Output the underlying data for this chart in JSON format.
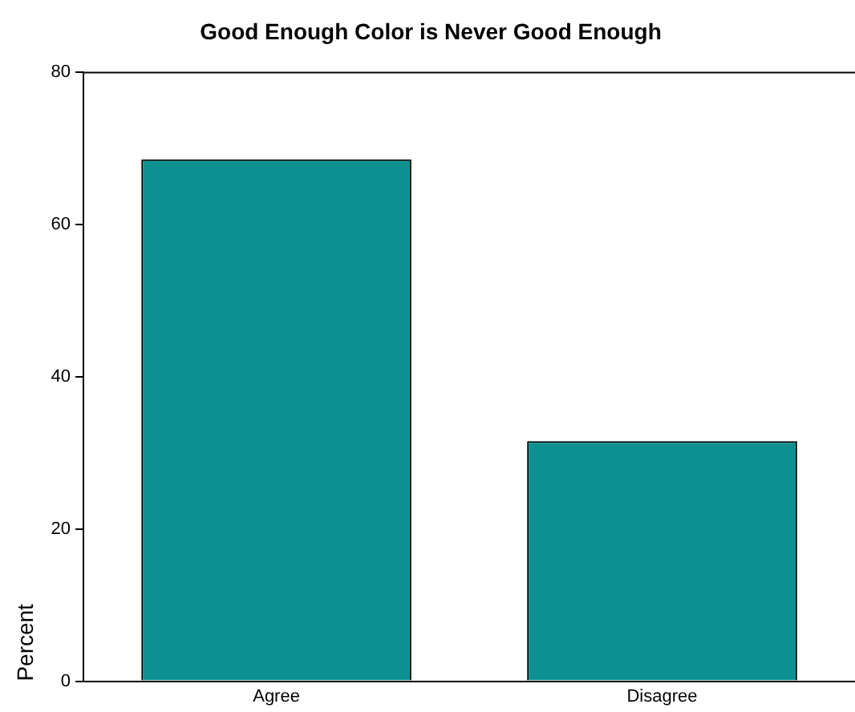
{
  "chart_data": {
    "type": "bar",
    "title": "Good Enough Color is Never Good Enough",
    "ylabel": "Percent",
    "categories": [
      "Agree",
      "Disagree"
    ],
    "values": [
      68.5,
      31.5
    ],
    "color": "#0e9090",
    "ylim": [
      0,
      80
    ],
    "yticks": [
      0,
      20,
      40,
      60,
      80
    ],
    "grid": false,
    "legend": false
  }
}
